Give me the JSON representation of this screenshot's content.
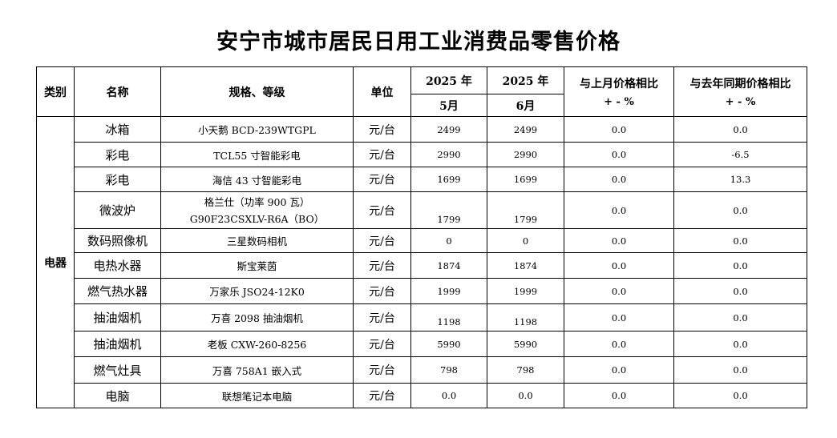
{
  "title": "安宁市城市居民日用工业消费品零售价格",
  "headers": {
    "category": "类别",
    "name": "名称",
    "spec": "规格、等级",
    "unit": "单位",
    "may_year": "2025 年",
    "may_month": "5月",
    "jun_year": "2025 年",
    "jun_month": "6月",
    "mom": "与上月价格相比",
    "mom_unit": "+ - %",
    "yoy": "与去年同期价格相比",
    "yoy_unit": "+ - %"
  },
  "category": "电器",
  "rows": [
    {
      "name": "冰箱",
      "spec": "小天鹅  BCD-239WTGPL",
      "unit": "元/台",
      "may": "2499",
      "jun": "2499",
      "mom": "0.0",
      "yoy": "0.0"
    },
    {
      "name": "彩电",
      "spec": "TCL55 寸智能彩电",
      "unit": "元/台",
      "may": "2990",
      "jun": "2990",
      "mom": "0.0",
      "yoy": "-6.5"
    },
    {
      "name": "彩电",
      "spec": "海信 43 寸智能彩电",
      "unit": "元/台",
      "may": "1699",
      "jun": "1699",
      "mom": "0.0",
      "yoy": "13.3"
    },
    {
      "name": "微波炉",
      "spec_line1": "格兰仕（功率 900 瓦）",
      "spec_line2": "G90F23CSXLV-R6A（BO）",
      "unit": "元/台",
      "may": "1799",
      "jun": "1799",
      "mom": "0.0",
      "yoy": "0.0"
    },
    {
      "name": "数码照像机",
      "spec": "三星数码相机",
      "unit": "元/台",
      "may": "0",
      "jun": "0",
      "mom": "0.0",
      "yoy": "0.0"
    },
    {
      "name": "电热水器",
      "spec": "斯宝莱茵",
      "unit": "元/台",
      "may": "1874",
      "jun": "1874",
      "mom": "0.0",
      "yoy": "0.0"
    },
    {
      "name": "燃气热水器",
      "spec": "万家乐  JSO24-12K0",
      "unit": "元/台",
      "may": "1999",
      "jun": "1999",
      "mom": "0.0",
      "yoy": "0.0"
    },
    {
      "name": "抽油烟机",
      "spec": "万喜 2098 抽油烟机",
      "unit": "元/台",
      "may": "1198",
      "jun": "1198",
      "mom": "0.0",
      "yoy": "0.0"
    },
    {
      "name": "抽油烟机",
      "spec": "老板 CXW-260-8256",
      "unit": "元/台",
      "may": "5990",
      "jun": "5990",
      "mom": "0.0",
      "yoy": "0.0"
    },
    {
      "name": "燃气灶具",
      "spec": "万喜 758A1 嵌入式",
      "unit": "元/台",
      "may": "798",
      "jun": "798",
      "mom": "0.0",
      "yoy": "0.0"
    },
    {
      "name": "电脑",
      "spec": "联想笔记本电脑",
      "unit": "元/台",
      "may": "0.0",
      "jun": "0.0",
      "mom": "0.0",
      "yoy": "0.0"
    }
  ]
}
